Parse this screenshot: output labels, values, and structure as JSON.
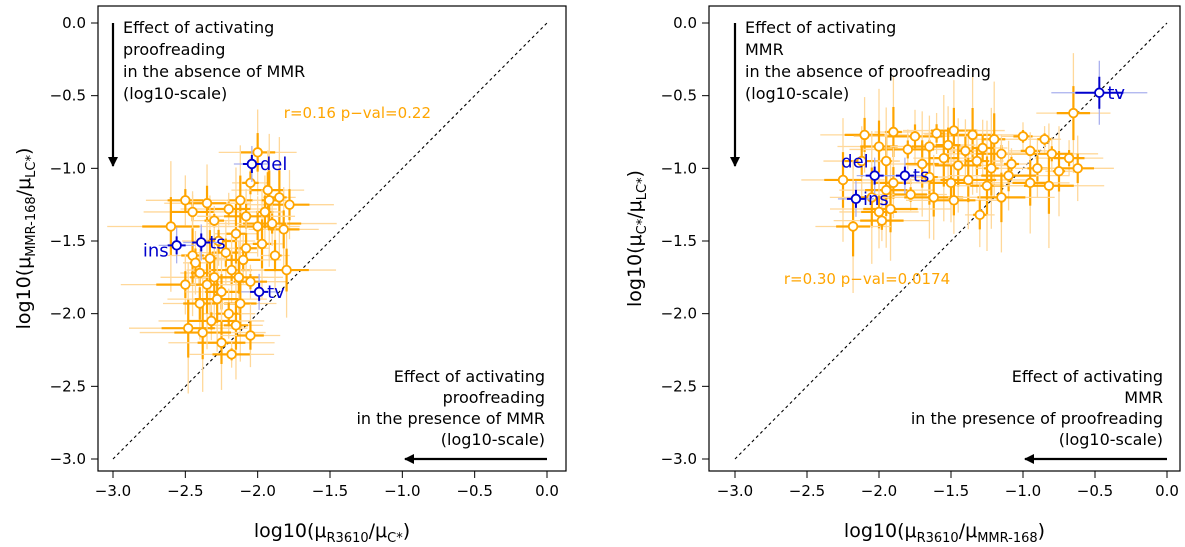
{
  "chart_data": [
    {
      "type": "scatter",
      "title": "",
      "xlabel": {
        "pre": "log10(μ",
        "sub1": "R3610",
        "mid": "/μ",
        "sub2": "C*",
        "post": ")"
      },
      "ylabel": {
        "pre": "log10(μ",
        "sub1": "MMR-168",
        "mid": "/μ",
        "sub2": "LC*",
        "post": ")"
      },
      "xlim": [
        -3.2,
        0.1
      ],
      "ylim": [
        -3.1,
        0.1
      ],
      "xticks": [
        "-3.0",
        "-2.5",
        "-2.0",
        "-1.5",
        "-1.0",
        "-0.5",
        "0.0"
      ],
      "yticks": [
        "0.0",
        "-0.5",
        "-1.0",
        "-1.5",
        "-2.0",
        "-2.5",
        "-3.0"
      ],
      "diagonal": true,
      "correlation_label": "r=0.16 p−val=0.22",
      "annotation_top": [
        "Effect of activating",
        "proofreading",
        "in the absence of MMR",
        "(log10-scale)"
      ],
      "annotation_bottom": [
        "Effect of activating",
        "proofreading",
        "in the presence of MMR",
        "(log10-scale)"
      ],
      "colors": {
        "points": "#ffa500",
        "highlight": "#0000cd",
        "light": "#ffd89a"
      },
      "highlighted": [
        {
          "label": "del",
          "x": -2.04,
          "y": -0.97
        },
        {
          "label": "ts",
          "x": -2.39,
          "y": -1.51
        },
        {
          "label": "ins",
          "x": -2.56,
          "y": -1.53
        },
        {
          "label": "tv",
          "x": -1.99,
          "y": -1.85
        }
      ],
      "points": [
        {
          "x": -2.0,
          "y": -0.89
        },
        {
          "x": -2.05,
          "y": -1.1
        },
        {
          "x": -1.93,
          "y": -1.15
        },
        {
          "x": -1.85,
          "y": -1.2
        },
        {
          "x": -1.78,
          "y": -1.25
        },
        {
          "x": -2.12,
          "y": -1.22
        },
        {
          "x": -2.2,
          "y": -1.28
        },
        {
          "x": -2.5,
          "y": -1.22
        },
        {
          "x": -2.45,
          "y": -1.3
        },
        {
          "x": -2.35,
          "y": -1.24
        },
        {
          "x": -2.3,
          "y": -1.36
        },
        {
          "x": -2.6,
          "y": -1.4
        },
        {
          "x": -1.95,
          "y": -1.3
        },
        {
          "x": -1.9,
          "y": -1.38
        },
        {
          "x": -1.82,
          "y": -1.42
        },
        {
          "x": -2.08,
          "y": -1.33
        },
        {
          "x": -2.15,
          "y": -1.45
        },
        {
          "x": -2.27,
          "y": -1.5
        },
        {
          "x": -2.0,
          "y": -1.4
        },
        {
          "x": -1.97,
          "y": -1.52
        },
        {
          "x": -2.22,
          "y": -1.58
        },
        {
          "x": -2.33,
          "y": -1.62
        },
        {
          "x": -2.45,
          "y": -1.6
        },
        {
          "x": -2.1,
          "y": -1.63
        },
        {
          "x": -2.18,
          "y": -1.7
        },
        {
          "x": -2.3,
          "y": -1.75
        },
        {
          "x": -2.4,
          "y": -1.72
        },
        {
          "x": -2.05,
          "y": -1.78
        },
        {
          "x": -1.88,
          "y": -1.6
        },
        {
          "x": -1.8,
          "y": -1.7
        },
        {
          "x": -2.5,
          "y": -1.8
        },
        {
          "x": -2.25,
          "y": -1.85
        },
        {
          "x": -2.12,
          "y": -1.93
        },
        {
          "x": -2.4,
          "y": -1.93
        },
        {
          "x": -2.2,
          "y": -2.0
        },
        {
          "x": -2.32,
          "y": -2.05
        },
        {
          "x": -2.15,
          "y": -2.08
        },
        {
          "x": -2.48,
          "y": -2.1
        },
        {
          "x": -2.38,
          "y": -2.13
        },
        {
          "x": -2.25,
          "y": -2.2
        },
        {
          "x": -2.18,
          "y": -2.28
        },
        {
          "x": -2.05,
          "y": -2.15
        },
        {
          "x": -2.08,
          "y": -1.55
        },
        {
          "x": -2.28,
          "y": -1.9
        },
        {
          "x": -2.35,
          "y": -1.8
        },
        {
          "x": -2.43,
          "y": -1.65
        },
        {
          "x": -2.13,
          "y": -1.75
        },
        {
          "x": -1.92,
          "y": -1.22
        }
      ]
    },
    {
      "type": "scatter",
      "title": "",
      "xlabel": {
        "pre": "log10(μ",
        "sub1": "R3610",
        "mid": "/μ",
        "sub2": "MMR-168",
        "post": ")"
      },
      "ylabel": {
        "pre": "log10(μ",
        "sub1": "C*",
        "mid": "/μ",
        "sub2": "LC*",
        "post": ")"
      },
      "xlim": [
        -3.2,
        0.1
      ],
      "ylim": [
        -3.1,
        0.1
      ],
      "xticks": [
        "-3.0",
        "-2.5",
        "-2.0",
        "-1.5",
        "-1.0",
        "-0.5",
        "0.0"
      ],
      "yticks": [
        "0.0",
        "-0.5",
        "-1.0",
        "-1.5",
        "-2.0",
        "-2.5",
        "-3.0"
      ],
      "diagonal": true,
      "correlation_label": "r=0.30 p−val=0.0174",
      "annotation_top": [
        "Effect of activating",
        "MMR",
        "in the absence of proofreading",
        "(log10-scale)"
      ],
      "annotation_bottom": [
        "Effect of activating",
        "MMR",
        "in the presence of proofreading",
        "(log10-scale)"
      ],
      "colors": {
        "points": "#ffa500",
        "highlight": "#0000cd",
        "light": "#ffd89a"
      },
      "highlighted": [
        {
          "label": "tv",
          "x": -0.47,
          "y": -0.48
        },
        {
          "label": "del",
          "x": -2.03,
          "y": -1.05
        },
        {
          "label": "ts",
          "x": -1.82,
          "y": -1.05
        },
        {
          "label": "ins",
          "x": -2.16,
          "y": -1.21
        }
      ],
      "points": [
        {
          "x": -0.65,
          "y": -0.62
        },
        {
          "x": -2.1,
          "y": -0.77
        },
        {
          "x": -1.9,
          "y": -0.75
        },
        {
          "x": -1.75,
          "y": -0.78
        },
        {
          "x": -1.6,
          "y": -0.76
        },
        {
          "x": -1.48,
          "y": -0.74
        },
        {
          "x": -1.35,
          "y": -0.77
        },
        {
          "x": -1.2,
          "y": -0.8
        },
        {
          "x": -1.0,
          "y": -0.78
        },
        {
          "x": -0.85,
          "y": -0.8
        },
        {
          "x": -2.0,
          "y": -0.85
        },
        {
          "x": -1.8,
          "y": -0.87
        },
        {
          "x": -1.65,
          "y": -0.85
        },
        {
          "x": -1.52,
          "y": -0.84
        },
        {
          "x": -1.4,
          "y": -0.88
        },
        {
          "x": -1.28,
          "y": -0.86
        },
        {
          "x": -1.15,
          "y": -0.9
        },
        {
          "x": -0.95,
          "y": -0.88
        },
        {
          "x": -0.8,
          "y": -0.9
        },
        {
          "x": -0.68,
          "y": -0.93
        },
        {
          "x": -2.12,
          "y": -0.95
        },
        {
          "x": -1.95,
          "y": -0.95
        },
        {
          "x": -1.7,
          "y": -0.97
        },
        {
          "x": -1.55,
          "y": -0.93
        },
        {
          "x": -1.45,
          "y": -0.98
        },
        {
          "x": -1.32,
          "y": -0.95
        },
        {
          "x": -1.22,
          "y": -1.0
        },
        {
          "x": -1.08,
          "y": -0.97
        },
        {
          "x": -0.9,
          "y": -1.0
        },
        {
          "x": -0.75,
          "y": -1.02
        },
        {
          "x": -0.62,
          "y": -1.0
        },
        {
          "x": -2.25,
          "y": -1.08
        },
        {
          "x": -1.9,
          "y": -1.1
        },
        {
          "x": -1.65,
          "y": -1.06
        },
        {
          "x": -1.5,
          "y": -1.1
        },
        {
          "x": -1.38,
          "y": -1.08
        },
        {
          "x": -1.25,
          "y": -1.12
        },
        {
          "x": -1.1,
          "y": -1.05
        },
        {
          "x": -0.95,
          "y": -1.1
        },
        {
          "x": -0.82,
          "y": -1.12
        },
        {
          "x": -2.05,
          "y": -1.2
        },
        {
          "x": -1.95,
          "y": -1.15
        },
        {
          "x": -1.78,
          "y": -1.18
        },
        {
          "x": -1.62,
          "y": -1.2
        },
        {
          "x": -1.48,
          "y": -1.22
        },
        {
          "x": -1.15,
          "y": -1.2
        },
        {
          "x": -2.0,
          "y": -1.3
        },
        {
          "x": -1.92,
          "y": -1.28
        },
        {
          "x": -1.3,
          "y": -1.32
        },
        {
          "x": -2.18,
          "y": -1.4
        },
        {
          "x": -1.98,
          "y": -1.36
        }
      ]
    }
  ]
}
